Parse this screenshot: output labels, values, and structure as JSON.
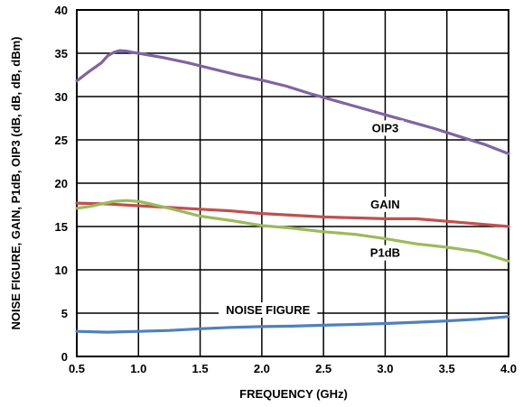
{
  "chart_data": {
    "type": "line",
    "xlabel": "FREQUENCY (GHz)",
    "ylabel": "NOISE FIGURE, GAIN, P1dB, OIP3 (dB, dB, dB, dBm)",
    "xlim": [
      0.5,
      4.0
    ],
    "ylim": [
      0,
      40
    ],
    "xticks": [
      "0.5",
      "1.0",
      "1.5",
      "2.0",
      "2.5",
      "3.0",
      "3.5",
      "4.0"
    ],
    "yticks": [
      "0",
      "5",
      "10",
      "15",
      "20",
      "25",
      "30",
      "35",
      "40"
    ],
    "grid": true,
    "legend": "none (inline labels)",
    "series": [
      {
        "name": "OIP3",
        "color": "#8064a2",
        "x": [
          0.5,
          0.6,
          0.7,
          0.75,
          0.8,
          0.85,
          0.9,
          0.95,
          1.0,
          1.2,
          1.4,
          1.6,
          1.8,
          2.0,
          2.2,
          2.4,
          2.6,
          2.8,
          3.0,
          3.2,
          3.4,
          3.6,
          3.8,
          4.0
        ],
        "y": [
          31.8,
          32.9,
          33.9,
          34.7,
          35.1,
          35.3,
          35.25,
          35.1,
          35.0,
          34.5,
          33.9,
          33.2,
          32.5,
          31.9,
          31.2,
          30.3,
          29.5,
          28.7,
          27.9,
          27.1,
          26.3,
          25.4,
          24.5,
          23.4
        ]
      },
      {
        "name": "GAIN",
        "color": "#c0504d",
        "x": [
          0.5,
          0.75,
          1.0,
          1.25,
          1.5,
          1.75,
          2.0,
          2.25,
          2.5,
          2.75,
          3.0,
          3.25,
          3.5,
          3.75,
          4.0
        ],
        "y": [
          17.7,
          17.6,
          17.4,
          17.2,
          17.0,
          16.8,
          16.5,
          16.3,
          16.1,
          16.0,
          15.9,
          15.9,
          15.6,
          15.3,
          15.0
        ]
      },
      {
        "name": "P1dB",
        "color": "#9bbb59",
        "x": [
          0.5,
          0.6,
          0.7,
          0.8,
          0.9,
          1.0,
          1.1,
          1.25,
          1.5,
          1.75,
          2.0,
          2.25,
          2.5,
          2.75,
          3.0,
          3.25,
          3.5,
          3.75,
          4.0
        ],
        "y": [
          17.1,
          17.3,
          17.6,
          17.9,
          18.0,
          17.9,
          17.6,
          17.1,
          16.2,
          15.7,
          15.1,
          14.8,
          14.4,
          14.1,
          13.6,
          13.0,
          12.6,
          12.1,
          11.0
        ]
      },
      {
        "name": "NOISE FIGURE",
        "color": "#4f81bd",
        "x": [
          0.5,
          0.75,
          1.0,
          1.25,
          1.5,
          1.75,
          2.0,
          2.25,
          2.5,
          2.75,
          3.0,
          3.25,
          3.5,
          3.75,
          4.0
        ],
        "y": [
          2.9,
          2.8,
          2.9,
          3.0,
          3.2,
          3.35,
          3.45,
          3.5,
          3.6,
          3.7,
          3.8,
          3.95,
          4.1,
          4.3,
          4.6
        ]
      }
    ],
    "annotations": [
      {
        "text": "OIP3",
        "x": 3.0,
        "y": 26.0
      },
      {
        "text": "GAIN",
        "x": 3.0,
        "y": 17.2
      },
      {
        "text": "P1dB",
        "x": 3.0,
        "y": 11.6
      },
      {
        "text": "NOISE FIGURE",
        "x": 2.05,
        "y": 5.0
      }
    ]
  }
}
